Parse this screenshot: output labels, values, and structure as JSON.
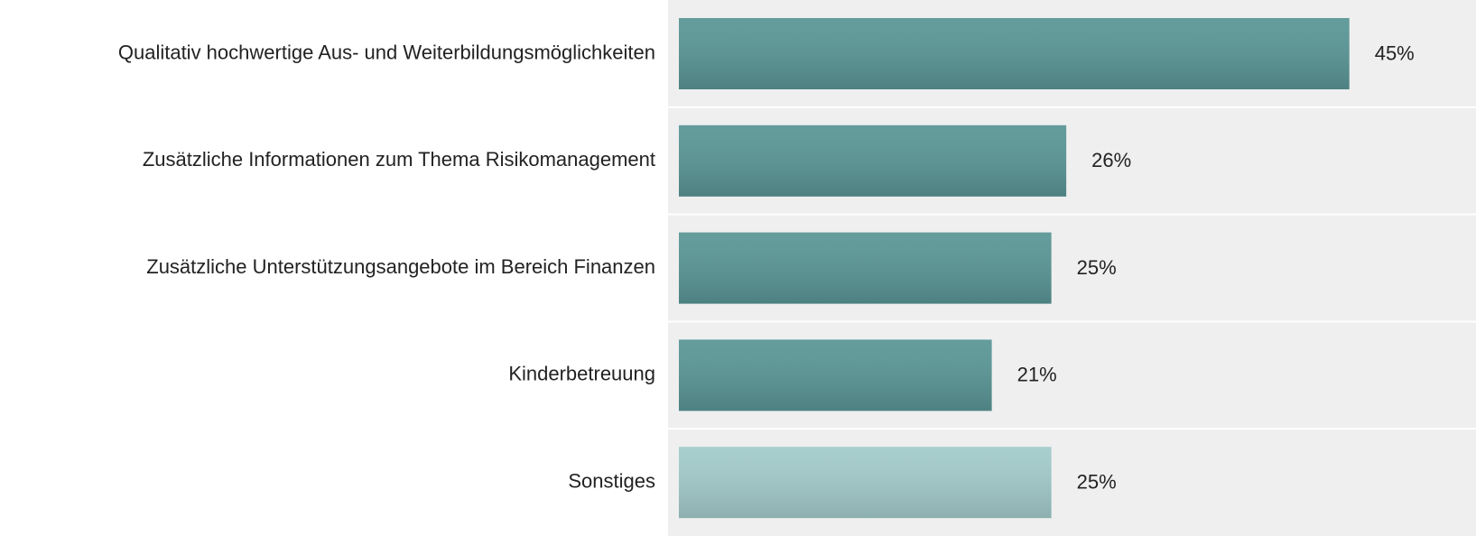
{
  "chart_data": {
    "type": "bar",
    "orientation": "horizontal",
    "categories": [
      "Qualitativ hochwertige Aus- und Weiterbildungsmöglichkeiten",
      "Zusätzliche Informationen zum Thema Risikomanagement",
      "Zusätzliche Unterstützungsangebote im Bereich Finanzen",
      "Kinderbetreuung",
      "Sonstiges"
    ],
    "values": [
      45,
      26,
      25,
      21,
      25
    ],
    "value_labels": [
      "45%",
      "26%",
      "25%",
      "21%",
      "25%"
    ],
    "colors": [
      "#5a9696",
      "#5a9696",
      "#5a9696",
      "#5a9696",
      "#a3cbcb"
    ],
    "xlim": [
      0,
      53.5
    ]
  }
}
